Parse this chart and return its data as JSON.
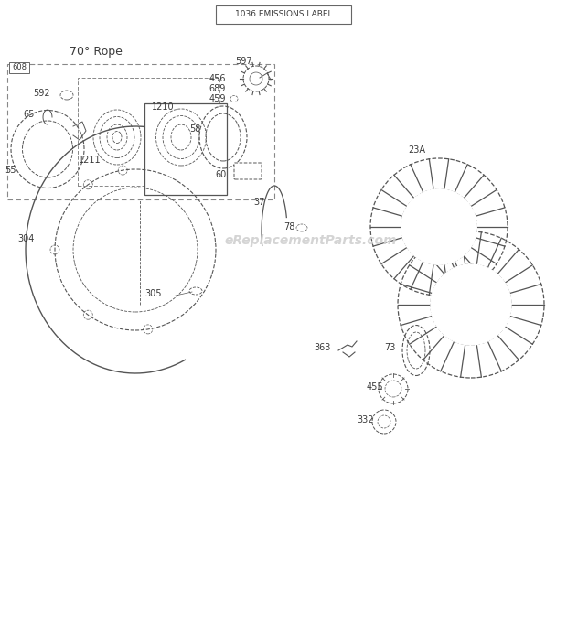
{
  "title_top": "1036 EMISSIONS LABEL",
  "section1_title": "70° Rope",
  "bg_color": "#ffffff",
  "text_color": "#3a3a3a",
  "line_color": "#555555",
  "watermark": "eReplacementParts.com"
}
